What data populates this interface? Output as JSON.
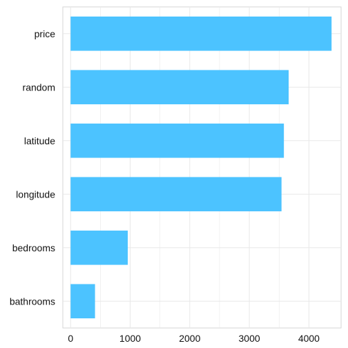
{
  "chart_data": {
    "type": "bar",
    "orientation": "horizontal",
    "title": "",
    "xlabel": "",
    "ylabel": "",
    "categories": [
      "price",
      "random",
      "latitude",
      "longitude",
      "bedrooms",
      "bathrooms"
    ],
    "values": [
      4380,
      3660,
      3580,
      3540,
      960,
      410
    ],
    "xlim": [
      -130,
      4540
    ],
    "xticks": [
      0,
      1000,
      2000,
      3000,
      4000
    ],
    "xtick_labels": [
      "0",
      "1000",
      "2000",
      "3000",
      "4000"
    ],
    "grid": true,
    "legend": "none",
    "colors": {
      "bar": "#4cc3ff",
      "grid": "#e8e8e8",
      "panel_border": "#d6d6d6",
      "text": "#111111"
    }
  }
}
